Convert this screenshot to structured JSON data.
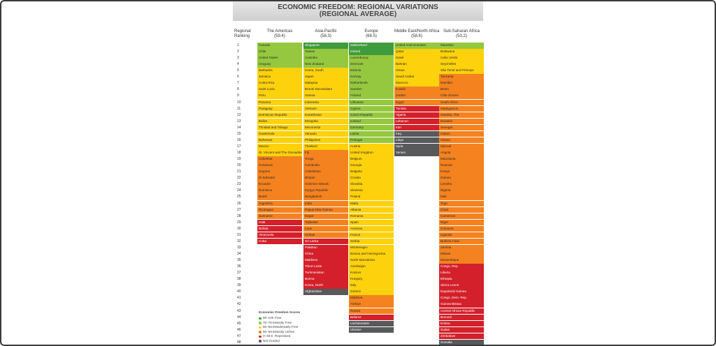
{
  "header": {
    "title": [
      "ECONOMIC FREEDOM: REGIONAL VARIATIONS",
      "(REGIONAL AVERAGE)"
    ]
  },
  "table": {
    "rank_header": [
      "Regional",
      "Ranking"
    ],
    "ranks": [
      1,
      2,
      3,
      4,
      5,
      6,
      7,
      8,
      9,
      10,
      11,
      12,
      13,
      14,
      15,
      16,
      17,
      18,
      19,
      20,
      21,
      22,
      23,
      24,
      25,
      26,
      27,
      28,
      29,
      30,
      31,
      32,
      33,
      34,
      35,
      36,
      37,
      38,
      39,
      40,
      41,
      42,
      43,
      44,
      45,
      46,
      47,
      48
    ],
    "columns": [
      {
        "region": "The Americas",
        "average": "(59.4)",
        "cells": [
          [
            "Canada",
            1
          ],
          [
            "Chile",
            1
          ],
          [
            "United States",
            1
          ],
          [
            "Uruguay",
            1
          ],
          [
            "Barbados",
            2
          ],
          [
            "Jamaica",
            2
          ],
          [
            "Costa Rica",
            2
          ],
          [
            "Saint Lucia",
            2
          ],
          [
            "Peru",
            2
          ],
          [
            "Panama",
            2
          ],
          [
            "Paraguay",
            2
          ],
          [
            "Dominican Republic",
            2
          ],
          [
            "Belize",
            2
          ],
          [
            "Trinidad and Tobago",
            2
          ],
          [
            "Guatemala",
            2
          ],
          [
            "Bahamas",
            2
          ],
          [
            "Mexico",
            2
          ],
          [
            "St. Vincent and The Grenadines",
            2
          ],
          [
            "Colombia",
            3
          ],
          [
            "Honduras",
            3
          ],
          [
            "Guyana",
            3
          ],
          [
            "El Salvador",
            3
          ],
          [
            "Ecuador",
            3
          ],
          [
            "Dominica",
            3
          ],
          [
            "Brazil",
            3
          ],
          [
            "Argentina",
            3
          ],
          [
            "Nicaragua",
            3
          ],
          [
            "Suriname",
            3
          ],
          [
            "Haiti",
            4
          ],
          [
            "Bolivia",
            4
          ],
          [
            "Venezuela",
            4
          ],
          [
            "Cuba",
            4
          ]
        ]
      },
      {
        "region": "Asia-Pacific",
        "average": "(58.3)",
        "cells": [
          [
            "Singapore",
            0
          ],
          [
            "Taiwan",
            1
          ],
          [
            "Australia",
            1
          ],
          [
            "New Zealand",
            1
          ],
          [
            "Korea, South",
            2
          ],
          [
            "Japan",
            2
          ],
          [
            "Malaysia",
            2
          ],
          [
            "Brunei Darussalam",
            2
          ],
          [
            "Samoa",
            2
          ],
          [
            "Indonesia",
            2
          ],
          [
            "Vietnam",
            2
          ],
          [
            "Kazakhstan",
            2
          ],
          [
            "Mongolia",
            2
          ],
          [
            "Micronesia",
            2
          ],
          [
            "Vanuatu",
            2
          ],
          [
            "Philippines",
            2
          ],
          [
            "Thailand",
            2
          ],
          [
            "Fiji",
            3
          ],
          [
            "Tonga",
            3
          ],
          [
            "Cambodia",
            3
          ],
          [
            "Uzbekistan",
            3
          ],
          [
            "Bhutan",
            3
          ],
          [
            "Solomon Islands",
            3
          ],
          [
            "Kyrgyz Republic",
            3
          ],
          [
            "Bangladesh",
            3
          ],
          [
            "India",
            3
          ],
          [
            "Papua New Guinea",
            3
          ],
          [
            "Nepal",
            3
          ],
          [
            "Tajikistan",
            3
          ],
          [
            "Laos",
            3
          ],
          [
            "Kiribati",
            3
          ],
          [
            "Sri Lanka",
            4
          ],
          [
            "Pakistan",
            4
          ],
          [
            "China",
            4
          ],
          [
            "Maldives",
            4
          ],
          [
            "Timor-Leste",
            4
          ],
          [
            "Turkmenistan",
            4
          ],
          [
            "Burma",
            4
          ],
          [
            "Korea, North",
            4
          ],
          [
            "Afghanistan",
            5
          ]
        ]
      },
      {
        "region": "Europe",
        "average": "(68.5)",
        "cells": [
          [
            "Switzerland",
            0
          ],
          [
            "Ireland",
            0
          ],
          [
            "Luxembourg",
            1
          ],
          [
            "Denmark",
            1
          ],
          [
            "Estonia",
            1
          ],
          [
            "Norway",
            1
          ],
          [
            "Netherlands",
            1
          ],
          [
            "Sweden",
            1
          ],
          [
            "Finland",
            1
          ],
          [
            "Lithuania",
            1
          ],
          [
            "Cyprus",
            1
          ],
          [
            "Czech Republic",
            1
          ],
          [
            "Iceland",
            1
          ],
          [
            "Germany",
            1
          ],
          [
            "Latvia",
            1
          ],
          [
            "Portugal",
            1
          ],
          [
            "Austria",
            2
          ],
          [
            "United Kingdom",
            2
          ],
          [
            "Belgium",
            2
          ],
          [
            "Georgia",
            2
          ],
          [
            "Bulgaria",
            2
          ],
          [
            "Croatia",
            2
          ],
          [
            "Slovakia",
            2
          ],
          [
            "Slovenia",
            2
          ],
          [
            "Poland",
            2
          ],
          [
            "Malta",
            2
          ],
          [
            "Albania",
            2
          ],
          [
            "Romania",
            2
          ],
          [
            "Spain",
            2
          ],
          [
            "Armenia",
            2
          ],
          [
            "France",
            2
          ],
          [
            "Serbia",
            2
          ],
          [
            "Montenegro",
            2
          ],
          [
            "Bosnia and Herzegovina",
            2
          ],
          [
            "North Macedonia",
            2
          ],
          [
            "Azerbaijan",
            2
          ],
          [
            "Kosovo",
            2
          ],
          [
            "Hungary",
            2
          ],
          [
            "Italy",
            2
          ],
          [
            "Greece",
            2
          ],
          [
            "Moldova",
            3
          ],
          [
            "Türkiye",
            3
          ],
          [
            "Russia",
            3
          ],
          [
            "Belarus",
            4
          ],
          [
            "Liechtenstein",
            5
          ],
          [
            "Ukraine",
            5
          ]
        ]
      },
      {
        "region": "Middle East/North Africa",
        "average": "(58.6)",
        "cells": [
          [
            "United Arab Emirates",
            1
          ],
          [
            "Qatar",
            2
          ],
          [
            "Israel",
            2
          ],
          [
            "Bahrain",
            2
          ],
          [
            "Oman",
            2
          ],
          [
            "Saudi Arabia",
            2
          ],
          [
            "Morocco",
            2
          ],
          [
            "Kuwait",
            3
          ],
          [
            "Jordan",
            3
          ],
          [
            "Egypt",
            3
          ],
          [
            "Tunisia",
            4
          ],
          [
            "Algeria",
            4
          ],
          [
            "Lebanon",
            4
          ],
          [
            "Iran",
            4
          ],
          [
            "Iraq",
            5
          ],
          [
            "Libya",
            5
          ],
          [
            "Syria",
            5
          ],
          [
            "Yemen",
            5
          ]
        ]
      },
      {
        "region": "Sub-Saharan Africa",
        "average": "(53.2)",
        "cells": [
          [
            "Mauritius",
            1
          ],
          [
            "Botswana",
            2
          ],
          [
            "Cabo Verde",
            2
          ],
          [
            "Seychelles",
            2
          ],
          [
            "São Tomé and Príncipe",
            2
          ],
          [
            "Tanzania",
            3
          ],
          [
            "Namibia",
            3
          ],
          [
            "Benin",
            3
          ],
          [
            "Côte d'Ivoire",
            3
          ],
          [
            "South Africa",
            3
          ],
          [
            "Madagascar",
            3
          ],
          [
            "Gambia, The",
            3
          ],
          [
            "Eswatini",
            3
          ],
          [
            "Senegal",
            3
          ],
          [
            "Gabon",
            3
          ],
          [
            "Ghana",
            3
          ],
          [
            "Djibouti",
            3
          ],
          [
            "Angola",
            3
          ],
          [
            "Mauritania",
            3
          ],
          [
            "Rwanda",
            3
          ],
          [
            "Kenya",
            3
          ],
          [
            "Guinea",
            3
          ],
          [
            "Lesotho",
            3
          ],
          [
            "Nigeria",
            3
          ],
          [
            "Mali",
            3
          ],
          [
            "Togo",
            3
          ],
          [
            "Chad",
            3
          ],
          [
            "Cameroon",
            3
          ],
          [
            "Niger",
            3
          ],
          [
            "Comoros",
            3
          ],
          [
            "Uganda",
            3
          ],
          [
            "Burkina Faso",
            3
          ],
          [
            "Zambia",
            3
          ],
          [
            "Malawi",
            3
          ],
          [
            "Mozambique",
            3
          ],
          [
            "Congo, Rep.",
            4
          ],
          [
            "Liberia",
            4
          ],
          [
            "Ethiopia",
            4
          ],
          [
            "Sierra Leone",
            4
          ],
          [
            "Equatorial Guinea",
            4
          ],
          [
            "Congo, Dem. Rep.",
            4
          ],
          [
            "Guinea-Bissau",
            4
          ],
          [
            "Central African Republic",
            4
          ],
          [
            "Burundi",
            4
          ],
          [
            "Eritrea",
            4
          ],
          [
            "Sudan",
            4
          ],
          [
            "Zimbabwe",
            4
          ],
          [
            "Somalia",
            5
          ]
        ]
      }
    ]
  },
  "legend": {
    "title": "Economic Freedom Scores",
    "items": [
      {
        "range": "80–100",
        "label": "Free",
        "color": "#3f9b3b"
      },
      {
        "range": "70–79.9",
        "label": "Mostly Free",
        "color": "#95c83f"
      },
      {
        "range": "60–69.9",
        "label": "Moderately Free",
        "color": "#fdd10c"
      },
      {
        "range": "50–59.9",
        "label": "Mostly Unfree",
        "color": "#f4821f"
      },
      {
        "range": "0–49.9",
        "label": "Repressed",
        "color": "#d3202a"
      },
      {
        "label": "Not Graded",
        "color": "#58595b"
      }
    ]
  }
}
